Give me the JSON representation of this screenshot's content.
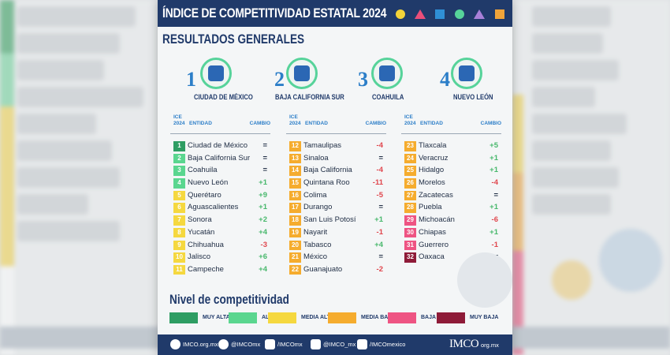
{
  "header": {
    "title": "ÍNDICE DE COMPETITIVIDAD ESTATAL 2024"
  },
  "section_title": "RESULTADOS GENERALES",
  "top4": [
    {
      "rank": "1",
      "name": "CIUDAD DE MÉXICO"
    },
    {
      "rank": "2",
      "name": "BAJA CALIFORNIA SUR"
    },
    {
      "rank": "3",
      "name": "COAHUILA"
    },
    {
      "rank": "4",
      "name": "NUEVO LEÓN"
    }
  ],
  "table_headers": {
    "ice": "ICE",
    "year": "2024",
    "entity": "ENTIDAD",
    "change": "CAMBIO"
  },
  "rankings": [
    [
      {
        "rank": "1",
        "entity": "Ciudad de México",
        "change": "=",
        "level": "muy_alta"
      },
      {
        "rank": "2",
        "entity": "Baja California Sur",
        "change": "=",
        "level": "alta"
      },
      {
        "rank": "3",
        "entity": "Coahuila",
        "change": "=",
        "level": "alta"
      },
      {
        "rank": "4",
        "entity": "Nuevo León",
        "change": "+1",
        "level": "alta"
      },
      {
        "rank": "5",
        "entity": "Querétaro",
        "change": "+9",
        "level": "media_alta"
      },
      {
        "rank": "6",
        "entity": "Aguascalientes",
        "change": "+1",
        "level": "media_alta"
      },
      {
        "rank": "7",
        "entity": "Sonora",
        "change": "+2",
        "level": "media_alta"
      },
      {
        "rank": "8",
        "entity": "Yucatán",
        "change": "+4",
        "level": "media_alta"
      },
      {
        "rank": "9",
        "entity": "Chihuahua",
        "change": "-3",
        "level": "media_alta"
      },
      {
        "rank": "10",
        "entity": "Jalisco",
        "change": "+6",
        "level": "media_alta"
      },
      {
        "rank": "11",
        "entity": "Campeche",
        "change": "+4",
        "level": "media_alta"
      }
    ],
    [
      {
        "rank": "12",
        "entity": "Tamaulipas",
        "change": "-4",
        "level": "media_baja"
      },
      {
        "rank": "13",
        "entity": "Sinaloa",
        "change": "=",
        "level": "media_baja"
      },
      {
        "rank": "14",
        "entity": "Baja California",
        "change": "-4",
        "level": "media_baja"
      },
      {
        "rank": "15",
        "entity": "Quintana Roo",
        "change": "-11",
        "level": "media_baja"
      },
      {
        "rank": "16",
        "entity": "Colima",
        "change": "-5",
        "level": "media_baja"
      },
      {
        "rank": "17",
        "entity": "Durango",
        "change": "=",
        "level": "media_baja"
      },
      {
        "rank": "18",
        "entity": "San Luis Potosí",
        "change": "+1",
        "level": "media_baja"
      },
      {
        "rank": "19",
        "entity": "Nayarit",
        "change": "-1",
        "level": "media_baja"
      },
      {
        "rank": "20",
        "entity": "Tabasco",
        "change": "+4",
        "level": "media_baja"
      },
      {
        "rank": "21",
        "entity": "México",
        "change": "=",
        "level": "media_baja"
      },
      {
        "rank": "22",
        "entity": "Guanajuato",
        "change": "-2",
        "level": "media_baja"
      }
    ],
    [
      {
        "rank": "23",
        "entity": "Tlaxcala",
        "change": "+5",
        "level": "media_baja"
      },
      {
        "rank": "24",
        "entity": "Veracruz",
        "change": "+1",
        "level": "media_baja"
      },
      {
        "rank": "25",
        "entity": "Hidalgo",
        "change": "+1",
        "level": "media_baja"
      },
      {
        "rank": "26",
        "entity": "Morelos",
        "change": "-4",
        "level": "media_baja"
      },
      {
        "rank": "27",
        "entity": "Zacatecas",
        "change": "=",
        "level": "media_baja"
      },
      {
        "rank": "28",
        "entity": "Puebla",
        "change": "+1",
        "level": "media_baja"
      },
      {
        "rank": "29",
        "entity": "Michoacán",
        "change": "-6",
        "level": "baja"
      },
      {
        "rank": "30",
        "entity": "Chiapas",
        "change": "+1",
        "level": "baja"
      },
      {
        "rank": "31",
        "entity": "Guerrero",
        "change": "-1",
        "level": "baja"
      },
      {
        "rank": "32",
        "entity": "Oaxaca",
        "change": "=",
        "level": "muy_baja"
      }
    ]
  ],
  "legend": {
    "title": "Nivel de competitividad",
    "items": [
      {
        "key": "muy_alta",
        "label": "MUY ALTA",
        "color": "#2e9d63"
      },
      {
        "key": "alta",
        "label": "ALTA",
        "color": "#5ad68f"
      },
      {
        "key": "media_alta",
        "label": "MEDIA ALTA",
        "color": "#f5d83f"
      },
      {
        "key": "media_baja",
        "label": "MEDIA BAJA",
        "color": "#f5ac2e"
      },
      {
        "key": "baja",
        "label": "BAJA",
        "color": "#ee5483"
      },
      {
        "key": "muy_baja",
        "label": "MUY BAJA",
        "color": "#8e1b38"
      }
    ]
  },
  "footer": {
    "links": [
      {
        "text": "IMCO.org.mx",
        "icon": "globe-icon"
      },
      {
        "text": "@IMCOmx",
        "icon": "twitter-icon"
      },
      {
        "text": "/IMCOmx",
        "icon": "facebook-icon"
      },
      {
        "text": "@IMCO_mx",
        "icon": "instagram-icon"
      },
      {
        "text": "/IMCOmexico",
        "icon": "youtube-icon"
      }
    ],
    "logo": "IMCO",
    "url": "org.mx"
  },
  "colors": {
    "navy": "#203a6a",
    "accent_blue": "#2c7ec8",
    "positive": "#48b86c",
    "negative": "#e0464d"
  }
}
